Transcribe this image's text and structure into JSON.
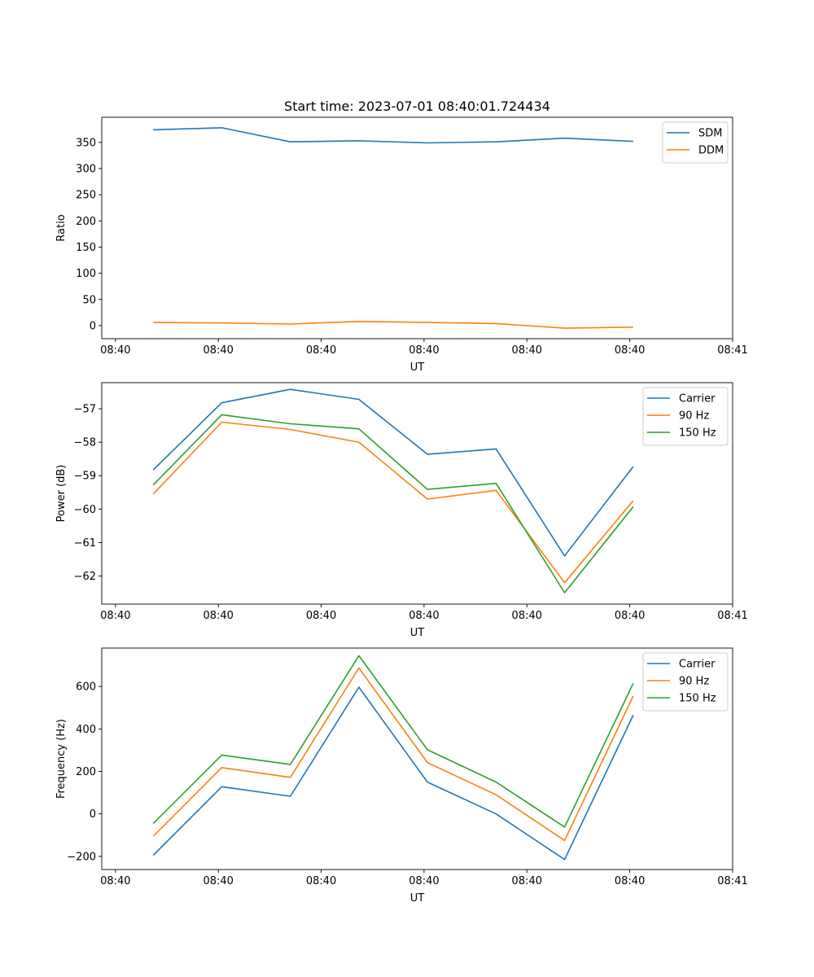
{
  "chart_data": [
    {
      "type": "line",
      "title": "Start time: 2023-07-01 08:40:01.724434",
      "xlabel": "UT",
      "ylabel": "Ratio",
      "x": [
        0,
        1,
        2,
        3,
        4,
        5,
        6,
        7
      ],
      "xlim": [
        -0.75,
        8.45
      ],
      "x_ticks": [
        {
          "pos": -0.55,
          "label": "08:40"
        },
        {
          "pos": 0.95,
          "label": "08:40"
        },
        {
          "pos": 2.45,
          "label": "08:40"
        },
        {
          "pos": 3.95,
          "label": "08:40"
        },
        {
          "pos": 5.45,
          "label": "08:40"
        },
        {
          "pos": 6.95,
          "label": "08:40"
        },
        {
          "pos": 8.45,
          "label": "08:41"
        }
      ],
      "ylim": [
        -25,
        398
      ],
      "y_ticks": [
        0,
        50,
        100,
        150,
        200,
        250,
        300,
        350
      ],
      "legend": "top-right",
      "series": [
        {
          "name": "SDM",
          "color": "#1f77b4",
          "values": [
            374,
            378,
            351,
            353,
            349,
            351,
            358,
            352
          ]
        },
        {
          "name": "DDM",
          "color": "#ff7f0e",
          "values": [
            6,
            5,
            3,
            8,
            6,
            4,
            -5,
            -3
          ]
        }
      ]
    },
    {
      "type": "line",
      "title": "",
      "xlabel": "UT",
      "ylabel": "Power (dB)",
      "x": [
        0,
        1,
        2,
        3,
        4,
        5,
        6,
        7
      ],
      "xlim": [
        -0.75,
        8.45
      ],
      "x_ticks": [
        {
          "pos": -0.55,
          "label": "08:40"
        },
        {
          "pos": 0.95,
          "label": "08:40"
        },
        {
          "pos": 2.45,
          "label": "08:40"
        },
        {
          "pos": 3.95,
          "label": "08:40"
        },
        {
          "pos": 5.45,
          "label": "08:40"
        },
        {
          "pos": 6.95,
          "label": "08:40"
        },
        {
          "pos": 8.45,
          "label": "08:41"
        }
      ],
      "ylim": [
        -62.84,
        -56.22
      ],
      "y_ticks": [
        -57,
        -58,
        -59,
        -60,
        -61,
        -62
      ],
      "legend": "top-right",
      "series": [
        {
          "name": "Carrier",
          "color": "#1f77b4",
          "values": [
            -58.83,
            -56.82,
            -56.42,
            -56.72,
            -58.36,
            -58.2,
            -61.4,
            -58.73
          ]
        },
        {
          "name": "90 Hz",
          "color": "#ff7f0e",
          "values": [
            -59.55,
            -57.4,
            -57.62,
            -58.0,
            -59.7,
            -59.44,
            -62.2,
            -59.75
          ]
        },
        {
          "name": "150 Hz",
          "color": "#2ca02c",
          "values": [
            -59.28,
            -57.18,
            -57.45,
            -57.6,
            -59.41,
            -59.23,
            -62.5,
            -59.93
          ]
        }
      ]
    },
    {
      "type": "line",
      "title": "",
      "xlabel": "UT",
      "ylabel": "Frequency (Hz)",
      "x": [
        0,
        1,
        2,
        3,
        4,
        5,
        6,
        7
      ],
      "xlim": [
        -0.75,
        8.45
      ],
      "x_ticks": [
        {
          "pos": -0.55,
          "label": "08:40"
        },
        {
          "pos": 0.95,
          "label": "08:40"
        },
        {
          "pos": 2.45,
          "label": "08:40"
        },
        {
          "pos": 3.95,
          "label": "08:40"
        },
        {
          "pos": 5.45,
          "label": "08:40"
        },
        {
          "pos": 6.95,
          "label": "08:40"
        },
        {
          "pos": 8.45,
          "label": "08:41"
        }
      ],
      "ylim": [
        -262,
        781
      ],
      "y_ticks": [
        -200,
        0,
        200,
        400,
        600
      ],
      "legend": "top-right",
      "series": [
        {
          "name": "Carrier",
          "color": "#1f77b4",
          "values": [
            -195,
            128,
            83,
            597,
            150,
            0,
            -215,
            465
          ]
        },
        {
          "name": "90 Hz",
          "color": "#ff7f0e",
          "values": [
            -105,
            218,
            172,
            687,
            242,
            90,
            -125,
            555
          ]
        },
        {
          "name": "150 Hz",
          "color": "#2ca02c",
          "values": [
            -45,
            277,
            233,
            745,
            302,
            150,
            -62,
            615
          ]
        }
      ]
    }
  ]
}
